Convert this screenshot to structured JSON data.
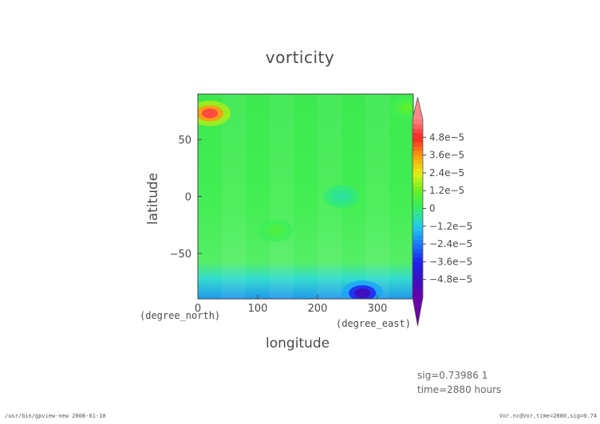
{
  "chart_data": {
    "type": "heatmap",
    "title": "vorticity",
    "xlabel": "longitude",
    "ylabel": "latitude",
    "x_unit": "(degree_east)",
    "y_unit": "(degree_north)",
    "xlim": [
      0,
      360
    ],
    "ylim": [
      -90,
      90
    ],
    "x_ticks": [
      0,
      100,
      200,
      300
    ],
    "x_tick_labels": [
      "0",
      "100",
      "200",
      "300"
    ],
    "y_ticks": [
      -50,
      0,
      50
    ],
    "y_tick_labels": [
      "−50",
      "0",
      "50"
    ],
    "colorbar": {
      "min": -6e-05,
      "max": 6e-05,
      "tick_values": [
        4.8e-05,
        3.6e-05,
        2.4e-05,
        1.2e-05,
        0,
        -1.2e-05,
        -2.4e-05,
        -3.6e-05,
        -4.8e-05
      ],
      "tick_labels": [
        "4.8e−5",
        "3.6e−5",
        "2.4e−5",
        "1.2e−5",
        "0",
        "−1.2e−5",
        "−2.4e−5",
        "−3.6e−5",
        "−4.8e−5"
      ],
      "extend": "both"
    },
    "features": [
      {
        "lon": 20,
        "lat": 73,
        "value": 5.2e-05
      },
      {
        "lon": 350,
        "lat": 78,
        "value": 1e-05
      },
      {
        "lon": 275,
        "lat": -85,
        "value": -5e-05
      },
      {
        "lon": 130,
        "lat": -30,
        "value": 7e-06
      },
      {
        "lon": 240,
        "lat": 0,
        "value": -5e-06
      }
    ]
  },
  "annotations": {
    "sig": "sig=0.73986  1",
    "time": "time=2880  hours"
  },
  "footer": {
    "left": "/usr/bin/gpview-new  2008-01-10",
    "right": "Vor.nc@Vor,time=2880,sig=0.74"
  }
}
